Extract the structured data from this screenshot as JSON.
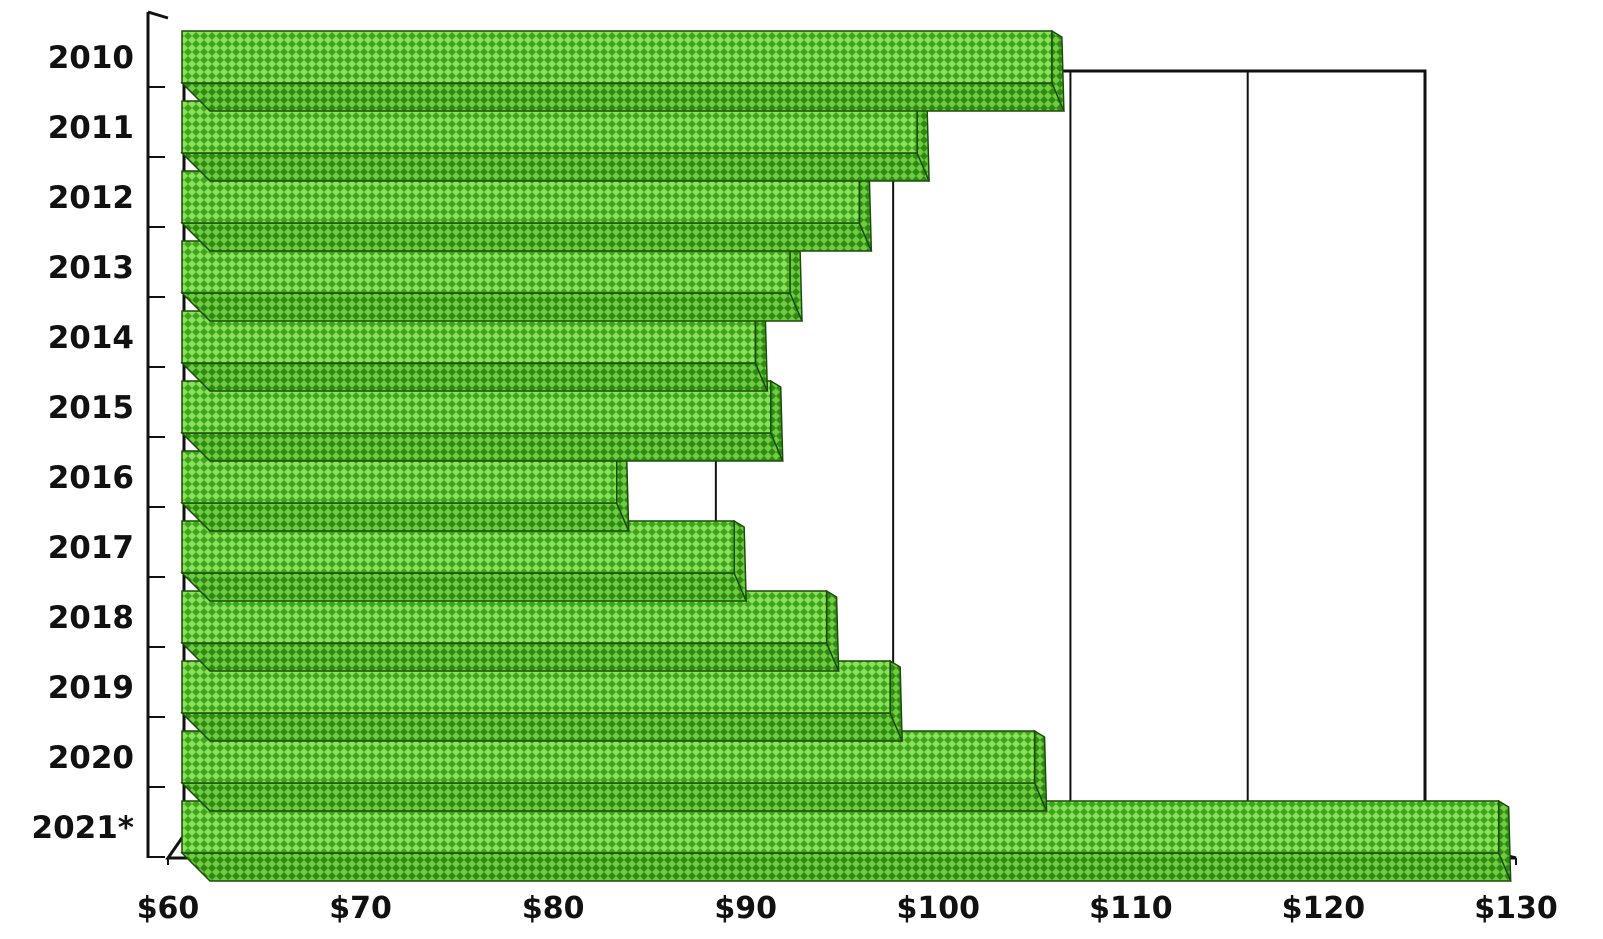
{
  "chart_data": {
    "type": "bar",
    "orientation": "horizontal",
    "style": "3d",
    "title": "",
    "xlabel": "",
    "ylabel": "",
    "categories": [
      "2010",
      "2011",
      "2012",
      "2013",
      "2014",
      "2015",
      "2016",
      "2017",
      "2018",
      "2019",
      "2020",
      "2021*"
    ],
    "values": [
      105.9,
      98.9,
      95.9,
      92.3,
      90.5,
      91.3,
      83.3,
      89.4,
      94.2,
      97.5,
      105.0,
      129.1
    ],
    "xlim": [
      60,
      130
    ],
    "xticks": [
      60,
      70,
      80,
      90,
      100,
      110,
      120,
      130
    ],
    "xtick_labels": [
      "$60",
      "$70",
      "$80",
      "$90",
      "$100",
      "$110",
      "$120",
      "$130"
    ],
    "grid": true,
    "legend": "none",
    "bar_color": "#8de05a",
    "bar_pattern_color": "#3ea51e",
    "bar_edge_color": "#1b4d0a"
  }
}
